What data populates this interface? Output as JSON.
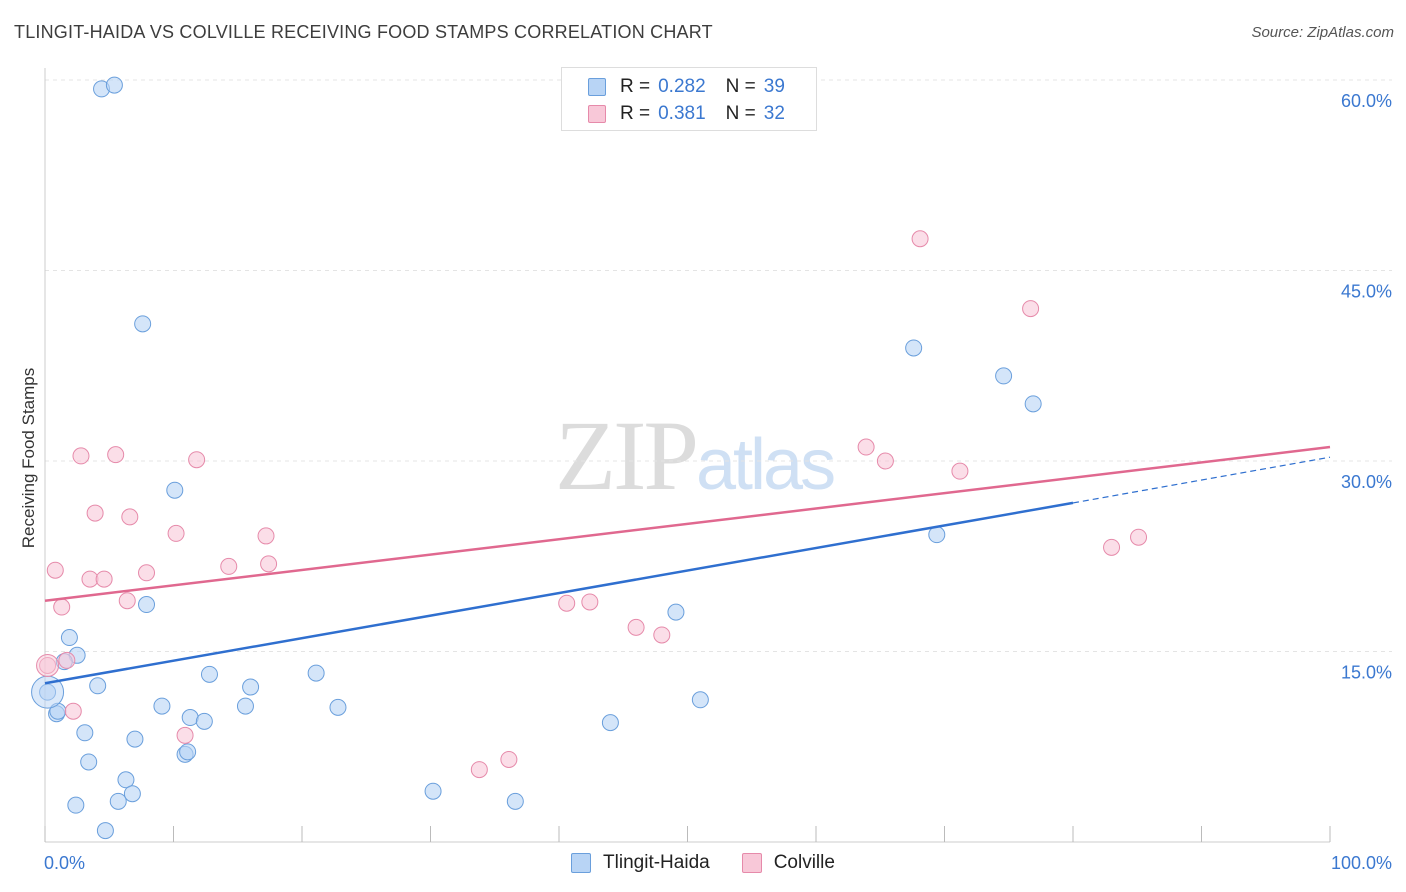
{
  "title": "TLINGIT-HAIDA VS COLVILLE RECEIVING FOOD STAMPS CORRELATION CHART",
  "source": "Source: ZipAtlas.com",
  "watermark": {
    "zip": "ZIP",
    "atlas": "atlas"
  },
  "legend": {
    "rows": [
      {
        "r_label": "R =",
        "r_value": "0.282",
        "n_label": "N =",
        "n_value": "39"
      },
      {
        "r_label": "R =",
        "r_value": "0.381",
        "n_label": "N =",
        "n_value": "32"
      }
    ]
  },
  "bottom_legend": [
    "Tlingit-Haida",
    "Colville"
  ],
  "colors": {
    "blue_fill": "#b8d4f5",
    "blue_stroke": "#6a9fdc",
    "blue_line": "#2f6fcf",
    "pink_fill": "#f8c8d8",
    "pink_stroke": "#e68aaa",
    "pink_line": "#e0688f",
    "tick_text": "#3b78d0",
    "grid": "#e4e4e4"
  },
  "chart_data": {
    "type": "scatter",
    "title": "TLINGIT-HAIDA VS COLVILLE RECEIVING FOOD STAMPS CORRELATION CHART",
    "xlabel": "",
    "ylabel": "Receiving Food Stamps",
    "xlim": [
      0,
      100
    ],
    "ylim": [
      0,
      60
    ],
    "x_tick_labels": [
      "0.0%",
      "100.0%"
    ],
    "y_ticks": [
      15,
      30,
      45,
      60
    ],
    "y_tick_labels": [
      "15.0%",
      "30.0%",
      "45.0%",
      "60.0%"
    ],
    "series": [
      {
        "name": "Tlingit-Haida",
        "color": "#6a9fdc",
        "R": 0.282,
        "N": 39,
        "trend": {
          "x0": 0,
          "y0": 12.5,
          "x1": 80,
          "y1": 26.7,
          "dash_to_x": 100,
          "dash_to_y": 30.3
        },
        "points": [
          [
            4.4,
            59.3
          ],
          [
            5.4,
            59.6
          ],
          [
            7.6,
            40.8
          ],
          [
            67.6,
            38.9
          ],
          [
            74.6,
            36.7
          ],
          [
            76.9,
            34.5
          ],
          [
            10.1,
            27.7
          ],
          [
            69.4,
            24.2
          ],
          [
            7.9,
            18.7
          ],
          [
            49.1,
            18.1
          ],
          [
            1.9,
            16.1
          ],
          [
            2.5,
            14.7
          ],
          [
            1.5,
            14.2
          ],
          [
            0.2,
            11.8
          ],
          [
            4.1,
            12.3
          ],
          [
            12.8,
            13.2
          ],
          [
            21.1,
            13.3
          ],
          [
            16.0,
            12.2
          ],
          [
            0.9,
            10.1
          ],
          [
            1.0,
            10.3
          ],
          [
            9.1,
            10.7
          ],
          [
            11.3,
            9.8
          ],
          [
            12.4,
            9.5
          ],
          [
            15.6,
            10.7
          ],
          [
            22.8,
            10.6
          ],
          [
            44.0,
            9.4
          ],
          [
            51.0,
            11.2
          ],
          [
            3.1,
            8.6
          ],
          [
            7.0,
            8.1
          ],
          [
            10.9,
            6.9
          ],
          [
            11.1,
            7.1
          ],
          [
            3.4,
            6.3
          ],
          [
            6.3,
            4.9
          ],
          [
            6.8,
            3.8
          ],
          [
            5.7,
            3.2
          ],
          [
            2.4,
            2.9
          ],
          [
            30.2,
            4.0
          ],
          [
            36.6,
            3.2
          ],
          [
            4.7,
            0.9
          ]
        ]
      },
      {
        "name": "Colville",
        "color": "#e68aaa",
        "R": 0.381,
        "N": 32,
        "trend": {
          "x0": 0,
          "y0": 19.0,
          "x1": 100,
          "y1": 31.1
        },
        "points": [
          [
            68.1,
            47.5
          ],
          [
            76.7,
            42.0
          ],
          [
            63.9,
            31.1
          ],
          [
            65.4,
            30.0
          ],
          [
            71.2,
            29.2
          ],
          [
            2.8,
            30.4
          ],
          [
            5.5,
            30.5
          ],
          [
            11.8,
            30.1
          ],
          [
            3.9,
            25.9
          ],
          [
            6.6,
            25.6
          ],
          [
            10.2,
            24.3
          ],
          [
            17.2,
            24.1
          ],
          [
            83.0,
            23.2
          ],
          [
            85.1,
            24.0
          ],
          [
            14.3,
            21.7
          ],
          [
            17.4,
            21.9
          ],
          [
            0.8,
            21.4
          ],
          [
            3.5,
            20.7
          ],
          [
            4.6,
            20.7
          ],
          [
            7.9,
            21.2
          ],
          [
            6.4,
            19.0
          ],
          [
            1.3,
            18.5
          ],
          [
            40.6,
            18.8
          ],
          [
            42.4,
            18.9
          ],
          [
            46.0,
            16.9
          ],
          [
            48.0,
            16.3
          ],
          [
            0.2,
            13.9
          ],
          [
            1.7,
            14.3
          ],
          [
            2.2,
            10.3
          ],
          [
            10.9,
            8.4
          ],
          [
            33.8,
            5.7
          ],
          [
            36.1,
            6.5
          ]
        ]
      }
    ]
  }
}
